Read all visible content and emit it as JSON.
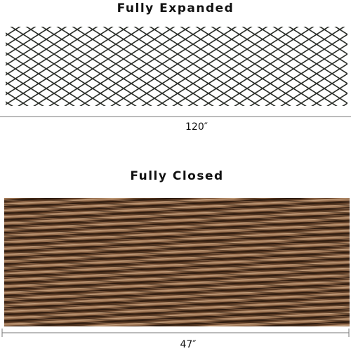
{
  "expanded": {
    "title": "Fully Expanded",
    "width_label": "120″"
  },
  "closed": {
    "title": "Fully Closed",
    "width_label": "47″"
  }
}
